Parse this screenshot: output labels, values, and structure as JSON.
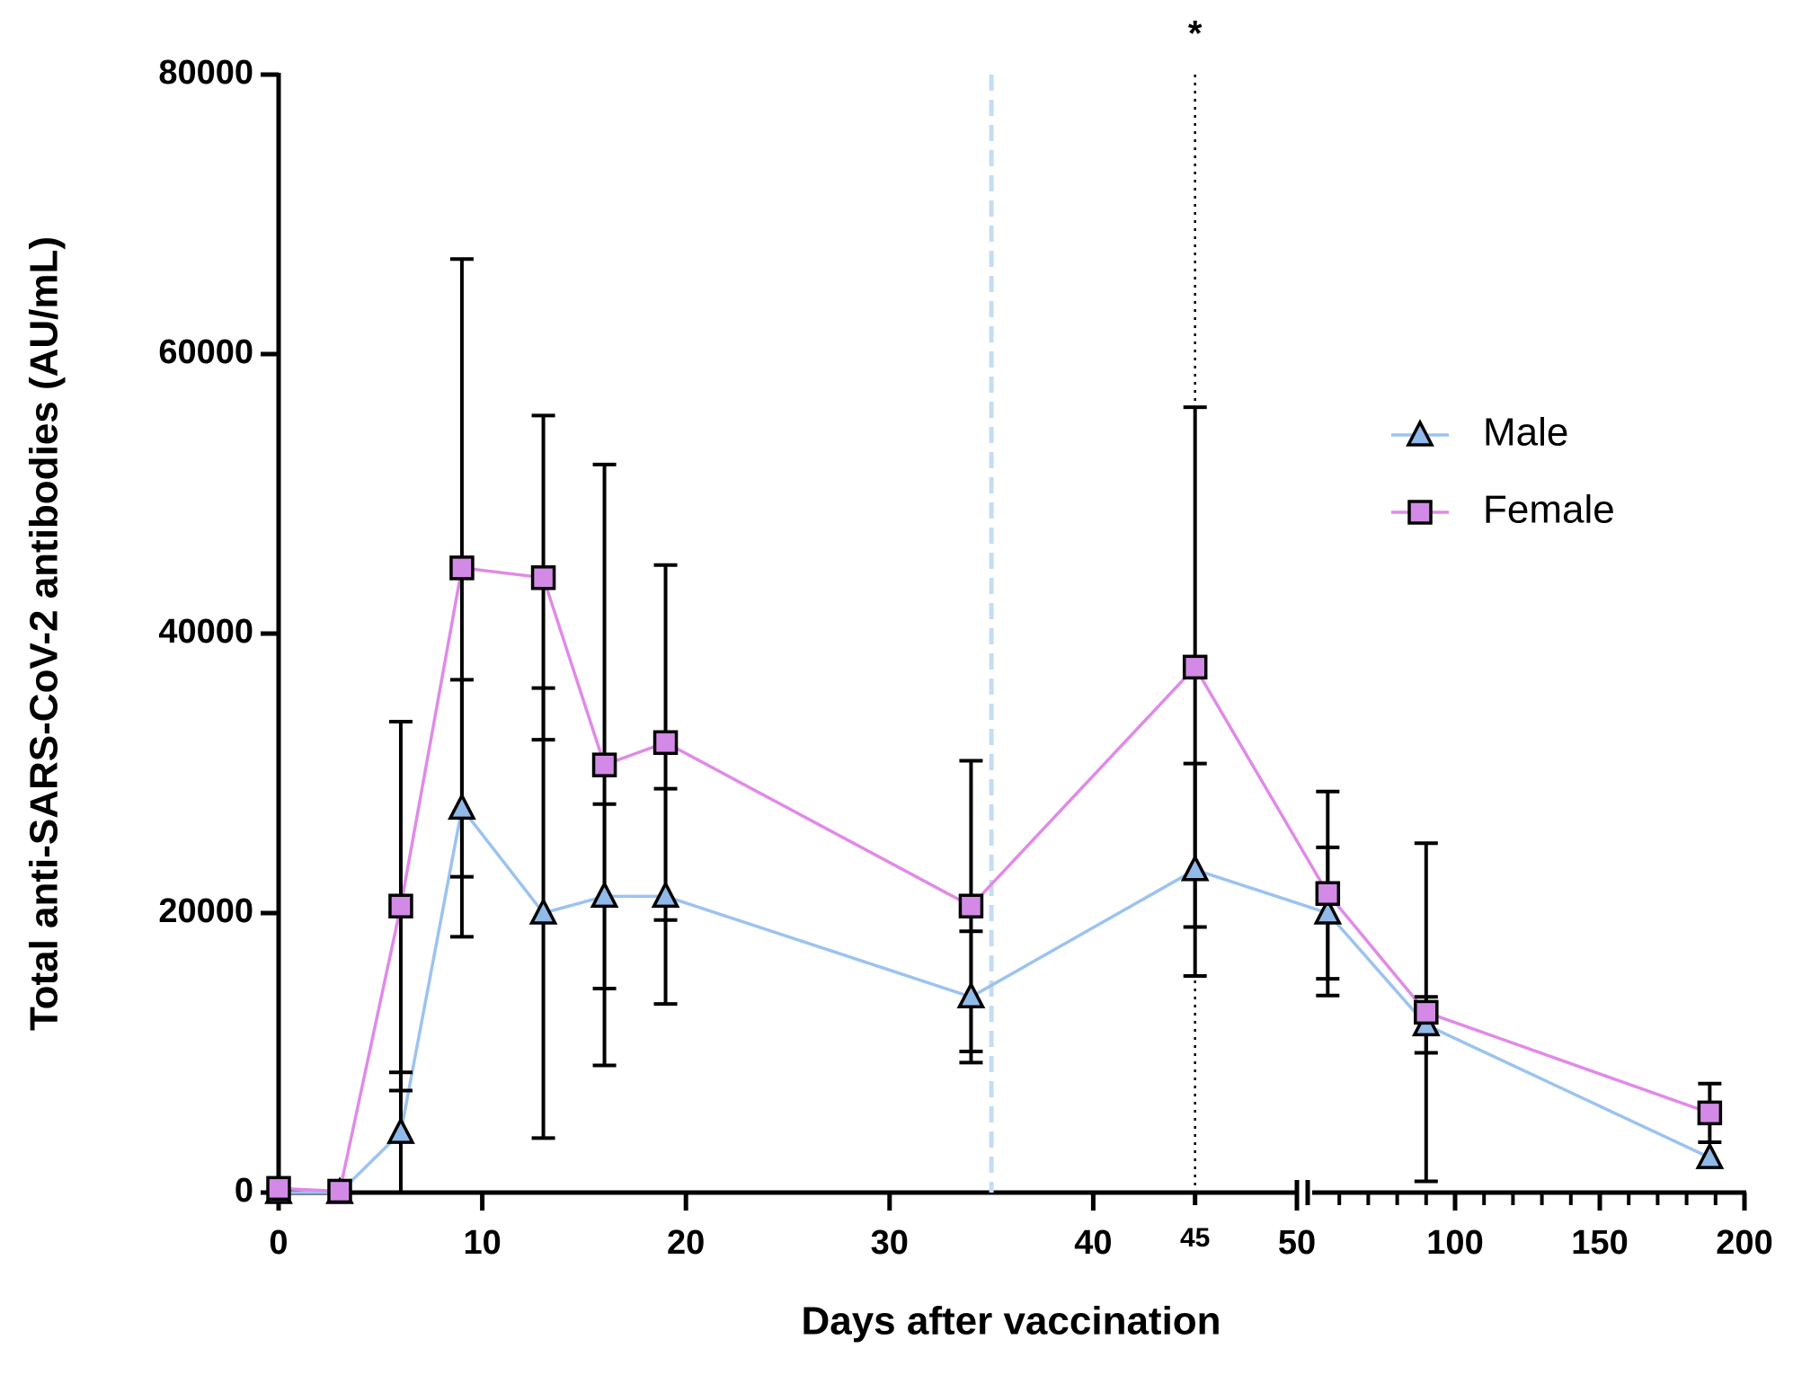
{
  "chart_data": {
    "type": "line",
    "xlabel": "Days after vaccination",
    "ylabel": "Total anti-SARS-CoV-2 antibodies (AU/mL)",
    "x": [
      0,
      3,
      6,
      9,
      13,
      16,
      19,
      34,
      45,
      56,
      90,
      188
    ],
    "series": [
      {
        "name": "Male",
        "color": "#9cc3ef",
        "marker_color": "#8fbaea",
        "marker": "triangle",
        "values": [
          0,
          0,
          4300,
          27500,
          20000,
          21200,
          21200,
          14000,
          23100,
          20000,
          12000,
          2500
        ],
        "errors": [
          0,
          0,
          4300,
          9200,
          16100,
          6600,
          7700,
          4700,
          7600,
          4700,
          2000,
          0
        ]
      },
      {
        "name": "Female",
        "color": "#e08ae8",
        "marker_color": "#d38ae6",
        "marker": "square",
        "values": [
          300,
          100,
          20500,
          44700,
          44000,
          30600,
          32200,
          20500,
          37600,
          21400,
          12900,
          5700
        ],
        "errors": [
          0,
          0,
          13200,
          22100,
          11600,
          21500,
          12700,
          10400,
          18600,
          7300,
          12100,
          2100
        ]
      }
    ],
    "x_segments": [
      {
        "xlim": [
          0,
          50
        ],
        "xticks": [
          0,
          10,
          20,
          30,
          40,
          45,
          50
        ]
      },
      {
        "xlim": [
          50,
          200
        ],
        "xticks": [
          100,
          150,
          200
        ],
        "xminorticks": [
          60,
          70,
          80,
          90,
          110,
          120,
          130,
          140,
          160,
          170,
          180,
          190
        ]
      }
    ],
    "ylim": [
      0,
      80000
    ],
    "yticks": [
      0,
      20000,
      40000,
      60000,
      80000
    ],
    "vlines": [
      {
        "x": 35,
        "color": "#c5dcf5",
        "style": "dashed"
      },
      {
        "x": 45,
        "color": "#000000",
        "style": "dotted",
        "label": "*"
      }
    ],
    "legend": "right"
  }
}
